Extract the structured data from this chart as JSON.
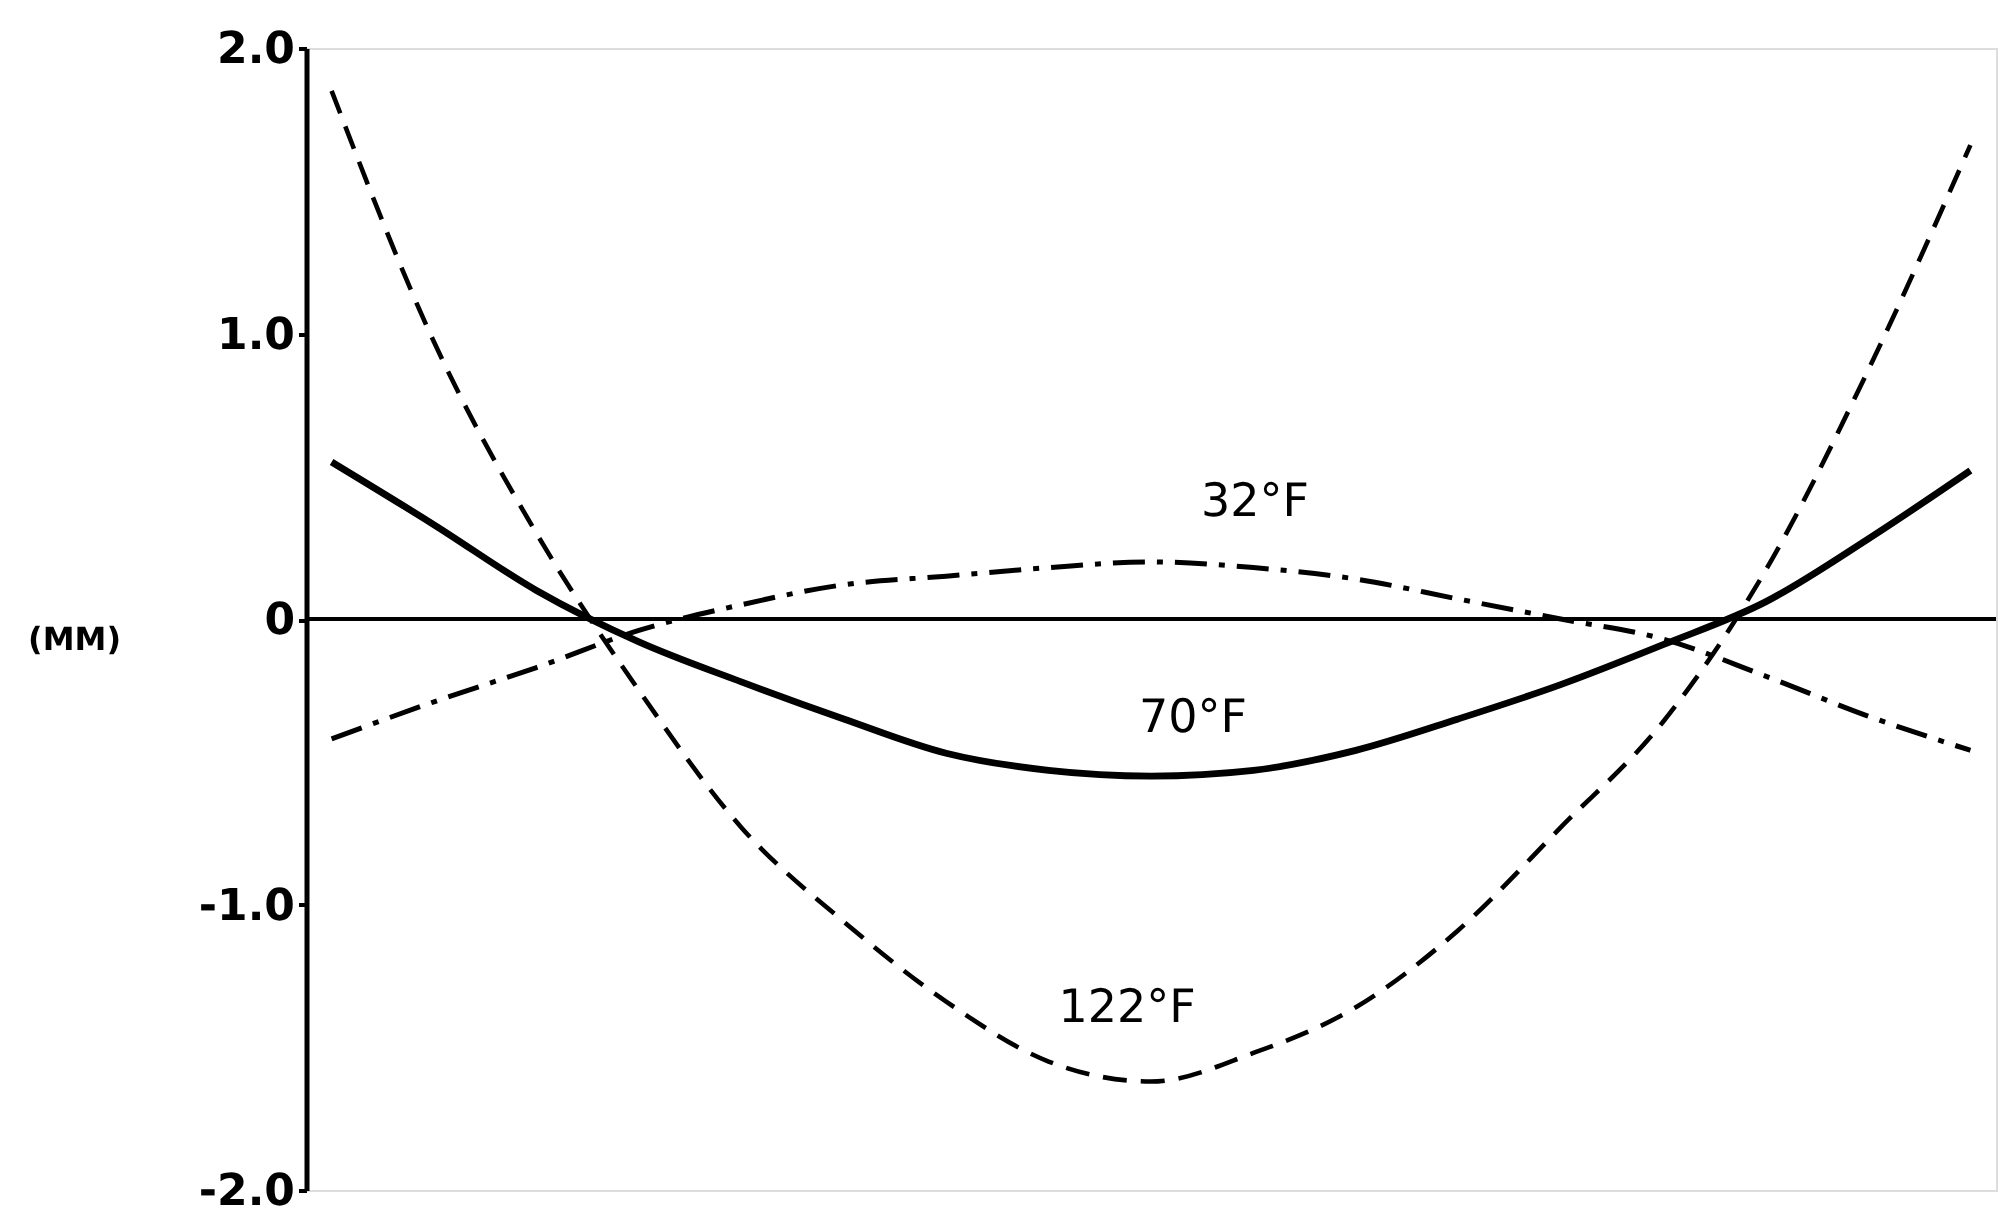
{
  "chart_data": {
    "type": "line",
    "ylabel": "(MM)",
    "categories": [
      null,
      null,
      null,
      null,
      null,
      null,
      null,
      null,
      null,
      null,
      null,
      null,
      null,
      null,
      null,
      null,
      null
    ],
    "ylim": [
      -2,
      2
    ],
    "yticks": [
      {
        "value": 2,
        "label": "2.0"
      },
      {
        "value": 1,
        "label": "1.0"
      },
      0,
      {
        "value": -1,
        "label": "-1.0"
      },
      {
        "value": -2,
        "label": "-2.0"
      }
    ],
    "tick_labels": "y",
    "ref_lines": [
      {
        "axis": "y",
        "value": 0,
        "color": "#000000"
      }
    ],
    "series": [
      {
        "name": "32°F",
        "color": "#000000",
        "line_style": "dashdot",
        "values": [
          -0.42,
          -0.29,
          -0.17,
          -0.04,
          0.05,
          0.12,
          0.15,
          0.18,
          0.2,
          0.18,
          0.14,
          0.07,
          0.0,
          -0.07,
          -0.2,
          -0.34,
          -0.46
        ]
      },
      {
        "name": "70°F",
        "color": "#000000",
        "line_style": "solid",
        "values": [
          0.55,
          0.33,
          0.1,
          -0.08,
          -0.22,
          -0.35,
          -0.47,
          -0.53,
          -0.55,
          -0.53,
          -0.46,
          -0.35,
          -0.23,
          -0.09,
          0.06,
          0.28,
          0.52
        ]
      },
      {
        "name": "122°F",
        "color": "#000000",
        "line_style": "dashed",
        "values": [
          1.85,
          0.97,
          0.3,
          -0.25,
          -0.73,
          -1.06,
          -1.34,
          -1.55,
          -1.62,
          -1.52,
          -1.36,
          -1.09,
          -0.73,
          -0.36,
          0.17,
          0.87,
          1.66
        ]
      }
    ]
  }
}
